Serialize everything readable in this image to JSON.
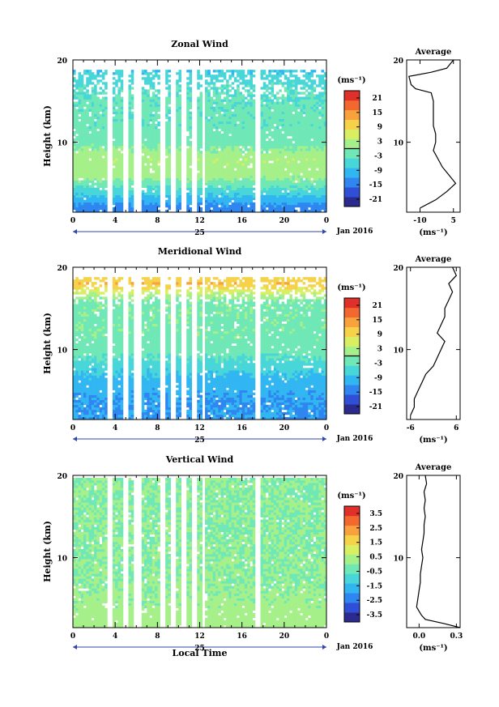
{
  "figure": {
    "background": "#ffffff",
    "date_label": "Jan 2016",
    "colormap": [
      "#2b2a8e",
      "#2f4fd6",
      "#2f86f0",
      "#31b6f2",
      "#48d6d8",
      "#6fe8b6",
      "#a6f08a",
      "#d9ee62",
      "#f5d24a",
      "#f7a23c",
      "#f2682e",
      "#e0302a"
    ],
    "blank_columns_hours": [
      3.5,
      3.7,
      5.0,
      6.0,
      6.3,
      8.4,
      8.6,
      9.5,
      10.5,
      11.3,
      11.5,
      12.3,
      17.4,
      17.6
    ]
  },
  "chart_data": [
    {
      "type": "heatmap",
      "title": "Zonal Wind",
      "xlabel": "",
      "ylabel": "Height (km)",
      "x_ticks": [
        "0",
        "4",
        "8",
        "12",
        "16",
        "20",
        "0"
      ],
      "x_tick_values": [
        0,
        4,
        8,
        12,
        16,
        20,
        24
      ],
      "day_label": "25",
      "y_ticks": [
        "20",
        "10"
      ],
      "y_tick_values": [
        20,
        10
      ],
      "xlim": [
        0,
        24
      ],
      "ylim": [
        1.5,
        20
      ],
      "colorbar_unit": "(ms⁻¹)",
      "colorbar_ticks": [
        "21",
        "15",
        "9",
        "3",
        "-3",
        "-9",
        "-15",
        "-21"
      ],
      "colorbar_range": [
        -24,
        24
      ],
      "zero_line": 0,
      "profile_levels_km": [
        2,
        4,
        6,
        8,
        10,
        12,
        14,
        16,
        18,
        20
      ],
      "field_m_per_s": [
        -14,
        -6,
        2,
        3,
        -2,
        -3,
        -3,
        -4,
        -6,
        -12
      ],
      "average": {
        "title": "Average",
        "xlabel": "(ms⁻¹)",
        "x_ticks": [
          "-10",
          "5"
        ],
        "x_tick_values": [
          -10,
          5
        ],
        "xlim": [
          -16,
          8
        ],
        "y_ticks": [
          "20",
          "10"
        ],
        "profile": [
          [
            2,
            -10
          ],
          [
            3,
            -3
          ],
          [
            4,
            2
          ],
          [
            5,
            6
          ],
          [
            6,
            3
          ],
          [
            7,
            0
          ],
          [
            8,
            -2
          ],
          [
            9,
            -4
          ],
          [
            10,
            -3
          ],
          [
            11,
            -3
          ],
          [
            12,
            -4
          ],
          [
            14,
            -4
          ],
          [
            15,
            -4
          ],
          [
            16,
            -5
          ],
          [
            16.5,
            -12
          ],
          [
            17,
            -14
          ],
          [
            18,
            -15
          ],
          [
            18.5,
            -5
          ],
          [
            19,
            2
          ],
          [
            20,
            5
          ]
        ]
      }
    },
    {
      "type": "heatmap",
      "title": "Meridional Wind",
      "xlabel": "",
      "ylabel": "Height (km)",
      "x_ticks": [
        "0",
        "4",
        "8",
        "12",
        "16",
        "20",
        "0"
      ],
      "x_tick_values": [
        0,
        4,
        8,
        12,
        16,
        20,
        24
      ],
      "day_label": "25",
      "y_ticks": [
        "20",
        "10"
      ],
      "y_tick_values": [
        20,
        10
      ],
      "xlim": [
        0,
        24
      ],
      "ylim": [
        1.5,
        20
      ],
      "colorbar_unit": "(ms⁻¹)",
      "colorbar_ticks": [
        "21",
        "15",
        "9",
        "3",
        "-3",
        "-9",
        "-15",
        "-21"
      ],
      "colorbar_range": [
        -24,
        24
      ],
      "zero_line": 0,
      "profile_levels_km": [
        2,
        4,
        6,
        8,
        10,
        12,
        14,
        16,
        18,
        20
      ],
      "field_m_per_s": [
        -12,
        -12,
        -10,
        -6,
        -2,
        -1,
        -1,
        -1,
        12,
        4
      ],
      "average": {
        "title": "Average",
        "xlabel": "(ms⁻¹)",
        "x_ticks": [
          "-6",
          "6"
        ],
        "x_tick_values": [
          -6,
          6
        ],
        "xlim": [
          -7,
          7
        ],
        "y_ticks": [
          "20",
          "10"
        ],
        "profile": [
          [
            2,
            -6
          ],
          [
            3,
            -5
          ],
          [
            4,
            -5
          ],
          [
            5,
            -4
          ],
          [
            6,
            -3
          ],
          [
            7,
            -2
          ],
          [
            8,
            0
          ],
          [
            9,
            1
          ],
          [
            10,
            2
          ],
          [
            11,
            3
          ],
          [
            12,
            1
          ],
          [
            13,
            2
          ],
          [
            14,
            3
          ],
          [
            15,
            3
          ],
          [
            16,
            4
          ],
          [
            17,
            5
          ],
          [
            18,
            4
          ],
          [
            19,
            6
          ],
          [
            20,
            5
          ]
        ]
      }
    },
    {
      "type": "heatmap",
      "title": "Vertical Wind",
      "xlabel": "Local Time",
      "ylabel": "Height (km)",
      "x_ticks": [
        "0",
        "4",
        "8",
        "12",
        "16",
        "20",
        "0"
      ],
      "x_tick_values": [
        0,
        4,
        8,
        12,
        16,
        20,
        24
      ],
      "day_label": "25",
      "y_ticks": [
        "20",
        "10"
      ],
      "y_tick_values": [
        20,
        10
      ],
      "xlim": [
        0,
        24
      ],
      "ylim": [
        1.5,
        20
      ],
      "colorbar_unit": "(ms⁻¹)",
      "colorbar_ticks": [
        "3.5",
        "2.5",
        "1.5",
        "0.5",
        "-0.5",
        "-1.5",
        "-2.5",
        "-3.5"
      ],
      "colorbar_range": [
        -4,
        4
      ],
      "zero_line": null,
      "profile_levels_km": [
        2,
        4,
        6,
        8,
        10,
        12,
        14,
        16,
        18,
        20
      ],
      "field_m_per_s": [
        0.4,
        0.2,
        0.1,
        0.0,
        0.0,
        0.0,
        0.0,
        0.0,
        0.0,
        0.0
      ],
      "average": {
        "title": "Average",
        "xlabel": "(ms⁻¹)",
        "x_ticks": [
          "0.0",
          "0.3"
        ],
        "x_tick_values": [
          0.0,
          0.3
        ],
        "xlim": [
          -0.1,
          0.33
        ],
        "y_ticks": [
          "20",
          "10"
        ],
        "profile": [
          [
            1.5,
            0.33
          ],
          [
            2,
            0.2
          ],
          [
            2.5,
            0.05
          ],
          [
            3,
            0.02
          ],
          [
            3.5,
            0.0
          ],
          [
            4,
            -0.02
          ],
          [
            5,
            -0.01
          ],
          [
            6,
            0.0
          ],
          [
            7,
            0.01
          ],
          [
            8,
            0.01
          ],
          [
            9,
            0.02
          ],
          [
            10,
            0.03
          ],
          [
            11,
            0.02
          ],
          [
            12,
            0.03
          ],
          [
            13,
            0.04
          ],
          [
            14,
            0.04
          ],
          [
            15,
            0.05
          ],
          [
            16,
            0.04
          ],
          [
            17,
            0.05
          ],
          [
            18,
            0.04
          ],
          [
            19,
            0.06
          ],
          [
            20,
            0.05
          ]
        ]
      }
    }
  ]
}
